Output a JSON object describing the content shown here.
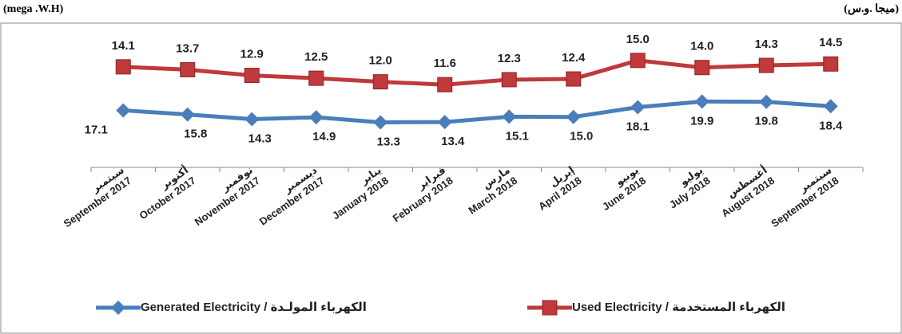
{
  "chart_data": {
    "type": "line",
    "unit_left": "(mega .W.H)",
    "unit_right": "(ميجا .و.س)",
    "categories": [
      "September 2017",
      "October  2017",
      "November 2017",
      "December 2017",
      "January 2018",
      "February 2018",
      "March 2018",
      "April 2018",
      "June 2018",
      "July 2018",
      "August 2018",
      "September 2018"
    ],
    "categories_ar": [
      "سبتمبر",
      "أكتوبر",
      "نوفمبر",
      "ديسمبر",
      "يناير",
      "فبراير",
      "مارس",
      "إبريل",
      "يونيو",
      "يوليو",
      "أغسطس",
      "سبتمبر"
    ],
    "ylim": [
      0,
      19
    ],
    "y2lim": [
      -1,
      42
    ],
    "series": [
      {
        "name": "Used Electricity / الكهرباء المستخدمة",
        "color": "#c0393b",
        "marker": "square",
        "values": [
          14.1,
          13.7,
          12.9,
          12.5,
          12,
          11.6,
          12.3,
          12.4,
          15,
          14,
          14.3,
          14.5
        ],
        "value_labels": [
          "14.1",
          "13.7",
          "12.9",
          "12.5",
          "12.0",
          "11.6",
          "12.3",
          "12.4",
          "15.0",
          "14.0",
          "14.3",
          "14.5"
        ]
      },
      {
        "name": "Generated Electricity / الكهرباء المولـدة",
        "color": "#4a7ebb",
        "marker": "diamond",
        "axis": "y2",
        "values": [
          17.1,
          15.8,
          14.3,
          14.9,
          13.3,
          13.4,
          15.1,
          15,
          18.1,
          19.9,
          19.8,
          18.4
        ],
        "value_labels": [
          "17.1",
          "15.8",
          "14.3",
          "14.9",
          "13.3",
          "13.4",
          "15.1",
          "15.0",
          "18.1",
          "19.9",
          "19.8",
          "18.4"
        ]
      }
    ]
  }
}
